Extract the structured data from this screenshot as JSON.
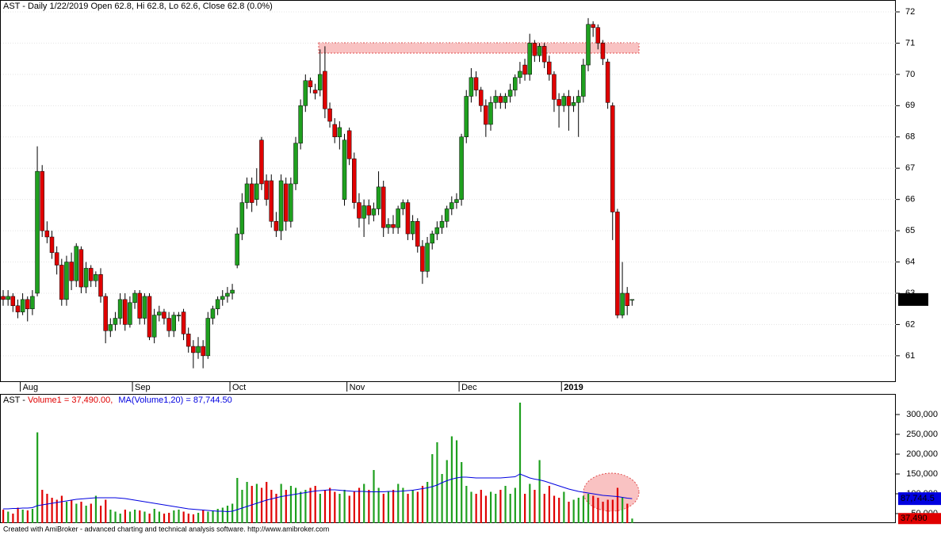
{
  "chart_data": [
    {
      "type": "candlestick",
      "title": "AST - Daily 1/22/2019 Open 62.8, Hi 62.8, Lo 62.6, Close 62.8 (0.0%)",
      "categories": [
        null,
        null,
        null,
        null,
        "Aug",
        null,
        null,
        null,
        null,
        null,
        null,
        null,
        null,
        null,
        null,
        null,
        null,
        null,
        null,
        null,
        null,
        null,
        null,
        null,
        null,
        null,
        null,
        "Sep",
        null,
        null,
        null,
        null,
        null,
        null,
        null,
        null,
        null,
        null,
        null,
        null,
        null,
        null,
        null,
        null,
        null,
        null,
        null,
        "Oct",
        null,
        null,
        null,
        null,
        null,
        null,
        null,
        null,
        null,
        null,
        null,
        null,
        null,
        null,
        null,
        null,
        null,
        null,
        null,
        null,
        null,
        null,
        null,
        "Nov",
        null,
        null,
        null,
        null,
        null,
        null,
        null,
        null,
        null,
        null,
        null,
        null,
        null,
        null,
        null,
        null,
        null,
        null,
        null,
        null,
        null,
        null,
        "Dec",
        null,
        null,
        null,
        null,
        null,
        null,
        null,
        null,
        null,
        null,
        null,
        null,
        null,
        null,
        null,
        null,
        null,
        null,
        null,
        null,
        "2019",
        null,
        null,
        null,
        null,
        null,
        null,
        null,
        null,
        null,
        null,
        null,
        null,
        null,
        null
      ],
      "open": [
        62.9,
        62.8,
        62.9,
        62.6,
        62.4,
        62.8,
        62.5,
        63.0,
        66.9,
        65.0,
        64.8,
        64.3,
        63.9,
        62.8,
        64.0,
        63.4,
        64.4,
        63.2,
        63.8,
        63.4,
        63.6,
        62.9,
        61.8,
        62.0,
        62.2,
        62.8,
        62.0,
        62.7,
        63.0,
        62.2,
        62.9,
        61.6,
        62.3,
        62.4,
        62.2,
        61.8,
        62.3,
        62.4,
        61.7,
        61.3,
        61.1,
        61.3,
        61.0,
        62.2,
        62.5,
        62.8,
        62.9,
        63.0,
        63.9,
        64.9,
        65.9,
        66.5,
        66.0,
        67.9,
        66.6,
        66.6,
        65.3,
        65.0,
        66.5,
        65.3,
        66.5,
        67.8,
        69.0,
        69.8,
        69.5,
        69.5,
        70.1,
        68.9,
        68.4,
        68.0,
        66.0,
        68.2,
        67.3,
        65.9,
        65.4,
        65.8,
        65.5,
        65.7,
        66.4,
        65.1,
        65.2,
        65.1,
        65.7,
        65.9,
        64.9,
        65.3,
        64.5,
        63.7,
        64.6,
        64.9,
        65.1,
        65.3,
        65.7,
        65.9,
        66.0,
        68.0,
        69.3,
        69.9,
        69.5,
        69.0,
        68.4,
        69.1,
        69.3,
        69.1,
        69.3,
        69.5,
        69.9,
        70.3,
        70.0,
        71.0,
        70.6,
        70.9,
        70.4,
        70.0,
        69.2,
        69.0,
        69.3,
        69.0,
        69.1,
        69.3,
        70.3,
        71.6,
        71.5,
        71.0,
        70.4,
        69.0,
        65.6,
        62.3,
        63.0,
        62.8
      ],
      "high": [
        63.1,
        63.1,
        63.0,
        62.8,
        63.0,
        62.9,
        63.1,
        67.7,
        67.1,
        65.3,
        65.0,
        64.5,
        64.1,
        64.2,
        64.3,
        64.6,
        64.5,
        64.0,
        63.9,
        63.7,
        63.8,
        63.0,
        62.2,
        62.4,
        63.0,
        63.0,
        62.9,
        63.1,
        63.1,
        63.0,
        63.0,
        62.5,
        62.6,
        62.5,
        62.4,
        62.4,
        62.4,
        62.5,
        61.9,
        61.5,
        61.6,
        61.5,
        62.4,
        62.6,
        62.9,
        63.1,
        63.2,
        63.3,
        65.1,
        66.2,
        66.7,
        66.7,
        67.0,
        68.0,
        66.8,
        66.8,
        65.6,
        66.8,
        66.7,
        66.7,
        68.0,
        69.2,
        70.0,
        69.9,
        69.7,
        70.8,
        70.9,
        69.1,
        68.6,
        68.5,
        68.1,
        68.3,
        67.5,
        66.2,
        66.0,
        66.0,
        65.9,
        66.9,
        66.6,
        65.4,
        65.5,
        65.8,
        66.0,
        66.0,
        65.5,
        65.4,
        64.7,
        64.8,
        65.0,
        65.3,
        65.5,
        65.8,
        66.1,
        66.2,
        68.1,
        69.5,
        70.2,
        70.1,
        69.6,
        69.2,
        69.3,
        69.5,
        69.4,
        69.4,
        69.7,
        70.0,
        70.4,
        70.5,
        71.3,
        71.1,
        71.0,
        71.0,
        70.6,
        70.1,
        69.4,
        69.4,
        69.5,
        69.3,
        69.5,
        70.5,
        71.8,
        71.7,
        71.6,
        71.1,
        70.5,
        69.1,
        65.7,
        64.0,
        63.2,
        62.8
      ],
      "low": [
        62.6,
        62.6,
        62.4,
        62.2,
        62.3,
        62.1,
        62.3,
        62.9,
        64.8,
        64.6,
        64.1,
        63.6,
        62.6,
        62.6,
        63.1,
        63.2,
        63.0,
        63.0,
        63.2,
        63.2,
        62.7,
        61.4,
        61.6,
        61.8,
        62.0,
        61.8,
        61.9,
        62.5,
        62.0,
        62.0,
        61.5,
        61.4,
        62.1,
        62.0,
        61.6,
        61.6,
        62.1,
        61.5,
        61.1,
        60.6,
        60.9,
        60.6,
        60.9,
        62.0,
        62.3,
        62.6,
        62.7,
        62.8,
        63.8,
        64.7,
        65.7,
        65.6,
        65.8,
        66.3,
        65.8,
        65.1,
        64.8,
        64.7,
        65.0,
        65.1,
        66.3,
        67.6,
        68.8,
        69.4,
        69.2,
        69.3,
        68.6,
        68.3,
        67.8,
        67.6,
        65.8,
        67.1,
        65.7,
        65.1,
        64.8,
        65.2,
        65.3,
        65.5,
        64.8,
        64.9,
        64.9,
        64.9,
        65.5,
        64.7,
        64.7,
        64.3,
        63.3,
        63.5,
        64.4,
        64.7,
        64.9,
        65.1,
        65.5,
        65.7,
        65.8,
        67.8,
        69.1,
        69.3,
        68.8,
        68.0,
        68.2,
        68.9,
        68.9,
        68.9,
        69.1,
        69.3,
        69.7,
        69.8,
        69.8,
        70.4,
        70.4,
        70.2,
        69.8,
        68.8,
        68.3,
        68.8,
        68.2,
        68.8,
        68.0,
        69.1,
        70.1,
        71.2,
        70.8,
        70.3,
        68.9,
        64.7,
        62.2,
        62.2,
        62.3,
        62.6
      ],
      "close": [
        62.8,
        62.9,
        62.6,
        62.4,
        62.8,
        62.5,
        62.9,
        66.9,
        65.0,
        64.8,
        64.3,
        63.9,
        62.8,
        64.0,
        63.4,
        64.5,
        63.2,
        63.8,
        63.4,
        63.6,
        62.9,
        61.8,
        62.0,
        62.2,
        62.8,
        62.0,
        62.7,
        63.0,
        62.2,
        62.9,
        61.6,
        62.3,
        62.4,
        62.2,
        61.8,
        62.3,
        62.3,
        61.7,
        61.3,
        61.1,
        61.3,
        61.0,
        62.2,
        62.5,
        62.8,
        62.9,
        63.0,
        63.1,
        64.9,
        65.9,
        66.5,
        65.9,
        66.5,
        66.5,
        66.0,
        65.3,
        65.0,
        66.6,
        65.3,
        66.5,
        67.8,
        69.0,
        69.8,
        69.6,
        69.4,
        70.0,
        68.9,
        68.5,
        68.0,
        68.3,
        67.9,
        67.3,
        65.9,
        65.4,
        65.8,
        65.5,
        65.7,
        66.4,
        65.1,
        65.2,
        65.1,
        65.7,
        65.9,
        64.9,
        65.3,
        64.5,
        63.7,
        64.6,
        64.9,
        65.1,
        65.3,
        65.7,
        65.9,
        66.0,
        68.0,
        69.3,
        69.9,
        69.5,
        69.0,
        68.4,
        69.1,
        69.3,
        69.1,
        69.3,
        69.5,
        69.9,
        70.1,
        70.0,
        71.0,
        70.6,
        70.9,
        70.4,
        70.0,
        69.2,
        69.0,
        69.3,
        69.0,
        69.1,
        69.3,
        70.3,
        71.6,
        71.5,
        71.0,
        70.5,
        69.1,
        65.6,
        62.3,
        63.0,
        62.6,
        62.8
      ],
      "close_last_label": "62.8",
      "up_color": "#1fa01f",
      "down_color": "#e00000",
      "ylim": [
        60.16,
        72.38
      ],
      "yticks": [
        61,
        62,
        63,
        64,
        65,
        66,
        67,
        68,
        69,
        70,
        71,
        72
      ],
      "grid": true
    },
    {
      "type": "volume",
      "ticker": "AST - ",
      "series": [
        {
          "name": "Volume1 = 37,490.00, ",
          "color": "#e00000",
          "last_label": "37,490",
          "values": [
            60000,
            55000,
            50000,
            65000,
            60000,
            58000,
            62000,
            255000,
            110000,
            100000,
            90000,
            85000,
            95000,
            80000,
            85000,
            75000,
            80000,
            70000,
            75000,
            95000,
            70000,
            85000,
            60000,
            55000,
            50000,
            60000,
            55000,
            60000,
            58000,
            55000,
            50000,
            62000,
            55000,
            50000,
            52000,
            58000,
            60000,
            55000,
            50000,
            48000,
            52000,
            60000,
            55000,
            58000,
            62000,
            65000,
            70000,
            75000,
            140000,
            110000,
            130000,
            120000,
            125000,
            115000,
            130000,
            110000,
            100000,
            125000,
            110000,
            120000,
            115000,
            105000,
            110000,
            115000,
            120000,
            100000,
            110000,
            115000,
            105000,
            100000,
            110000,
            95000,
            105000,
            115000,
            125000,
            110000,
            160000,
            115000,
            100000,
            105000,
            110000,
            125000,
            115000,
            100000,
            110000,
            105000,
            120000,
            130000,
            200000,
            230000,
            150000,
            185000,
            245000,
            235000,
            180000,
            120000,
            105000,
            100000,
            110000,
            95000,
            105000,
            100000,
            110000,
            120000,
            100000,
            115000,
            330000,
            100000,
            125000,
            110000,
            185000,
            100000,
            120000,
            95000,
            90000,
            105000,
            80000,
            85000,
            90000,
            95000,
            100000,
            95000,
            90000,
            80000,
            85000,
            85000,
            115000,
            90000,
            75000,
            37490
          ]
        },
        {
          "name": "MA(Volume1,20) = 87,744.50",
          "color": "#0000e0",
          "last_label": "87,744.5",
          "values": [
            62000,
            62000,
            63000,
            63000,
            64000,
            64000,
            65000,
            70000,
            72000,
            74000,
            76000,
            78000,
            80000,
            82000,
            84000,
            86000,
            87000,
            88000,
            89000,
            90000,
            90000,
            90000,
            90000,
            90000,
            89000,
            88000,
            86000,
            84000,
            82000,
            80000,
            78000,
            76000,
            74000,
            72000,
            70000,
            68000,
            66000,
            64000,
            62000,
            61000,
            60000,
            59000,
            58000,
            57000,
            56000,
            56000,
            55000,
            56000,
            60000,
            64000,
            68000,
            72000,
            76000,
            80000,
            84000,
            87000,
            90000,
            93000,
            95000,
            97000,
            99000,
            101000,
            103000,
            105000,
            107000,
            108000,
            109000,
            110000,
            110000,
            109000,
            108000,
            107000,
            106000,
            106000,
            106000,
            105000,
            105000,
            105000,
            105000,
            106000,
            106000,
            106000,
            107000,
            108000,
            109000,
            111000,
            113000,
            115000,
            118000,
            122000,
            128000,
            133000,
            137000,
            140000,
            142000,
            142000,
            141000,
            140000,
            140000,
            140000,
            140000,
            140000,
            140000,
            141000,
            142000,
            143000,
            150000,
            145000,
            140000,
            137000,
            135000,
            132000,
            128000,
            124000,
            120000,
            116000,
            112000,
            109000,
            106000,
            104000,
            102000,
            100000,
            98000,
            96000,
            95000,
            94000,
            93000,
            91000,
            89000,
            87744.5
          ]
        }
      ],
      "ylim": [
        26000,
        352000
      ],
      "yticks": [
        {
          "value": 50000,
          "label": "50,000"
        },
        {
          "value": 100000,
          "label": "100,000"
        },
        {
          "value": 150000,
          "label": "150,000"
        },
        {
          "value": 200000,
          "label": "200,000"
        },
        {
          "value": 250000,
          "label": "250,000"
        },
        {
          "value": 300000,
          "label": "300,000"
        }
      ]
    }
  ],
  "footer": "Created with AmiBroker - advanced charting and technical analysis software. http://www.amibroker.com"
}
